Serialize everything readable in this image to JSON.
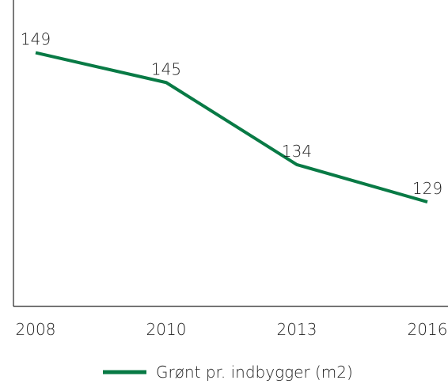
{
  "chart_data": {
    "type": "line",
    "categories": [
      "2008",
      "2010",
      "2013",
      "2016"
    ],
    "series": [
      {
        "name": "Grønt pr. indbygger (m2)",
        "color": "#087a45",
        "values": [
          149,
          145,
          134,
          129
        ]
      }
    ],
    "ylim": [
      115,
      155
    ],
    "legend": "bottom"
  }
}
